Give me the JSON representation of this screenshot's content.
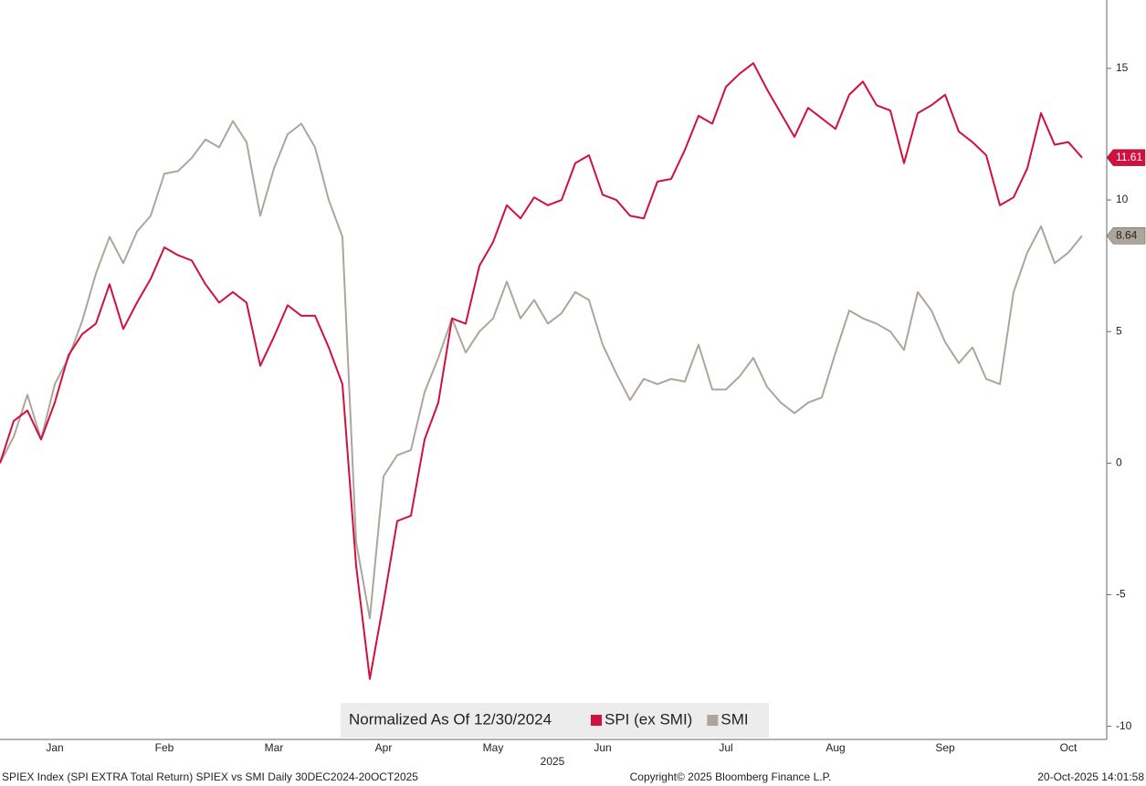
{
  "chart_data": {
    "type": "line",
    "title": "Normalized As Of 12/30/2024",
    "x_label": "2025",
    "footer_left": "SPIEX Index (SPI EXTRA Total Return) SPIEX vs SMI Daily 30DEC2024-20OCT2025",
    "footer_center": "Copyright© 2025 Bloomberg Finance L.P.",
    "footer_right": "20-Oct-2025 14:01:58",
    "categories": [
      null,
      null,
      null,
      null,
      "Jan",
      null,
      null,
      null,
      null,
      null,
      null,
      null,
      "Feb",
      null,
      null,
      null,
      null,
      null,
      null,
      null,
      "Mar",
      null,
      null,
      null,
      null,
      null,
      null,
      null,
      "Apr",
      null,
      null,
      null,
      null,
      null,
      null,
      null,
      "May",
      null,
      null,
      null,
      null,
      null,
      null,
      null,
      "Jun",
      null,
      null,
      null,
      null,
      null,
      null,
      null,
      null,
      "Jul",
      null,
      null,
      null,
      null,
      null,
      null,
      null,
      "Aug",
      null,
      null,
      null,
      null,
      null,
      null,
      null,
      "Sep",
      null,
      null,
      null,
      null,
      null,
      null,
      null,
      null,
      "Oct",
      null
    ],
    "series": [
      {
        "name": "SPI (ex SMI)",
        "color": "#d0103f",
        "values": [
          0,
          1.6,
          2.0,
          0.9,
          2.3,
          4.1,
          4.9,
          5.3,
          6.8,
          5.1,
          6.1,
          7.0,
          8.2,
          7.9,
          7.7,
          6.8,
          6.1,
          6.5,
          6.1,
          3.7,
          4.8,
          6.0,
          5.6,
          5.6,
          4.4,
          3.0,
          -3.9,
          -8.2,
          -5.3,
          -2.2,
          -2.0,
          0.9,
          2.3,
          5.5,
          5.3,
          7.5,
          8.4,
          9.8,
          9.3,
          10.1,
          9.8,
          10.0,
          11.4,
          11.7,
          10.2,
          10.0,
          9.4,
          9.3,
          10.7,
          10.8,
          11.9,
          13.2,
          12.9,
          14.3,
          14.8,
          15.2,
          14.2,
          13.3,
          12.4,
          13.5,
          13.1,
          12.7,
          14.0,
          14.5,
          13.6,
          13.4,
          11.4,
          13.3,
          13.6,
          14.0,
          12.6,
          12.2,
          11.7,
          9.8,
          10.1,
          11.2,
          13.3,
          12.1,
          12.2,
          11.61
        ]
      },
      {
        "name": "SMI",
        "color": "#aea59a",
        "values": [
          0,
          1.0,
          2.6,
          0.9,
          3.0,
          4.0,
          5.4,
          7.2,
          8.6,
          7.6,
          8.8,
          9.4,
          11.0,
          11.1,
          11.6,
          12.3,
          12.0,
          13.0,
          12.2,
          9.4,
          11.2,
          12.5,
          12.9,
          12.0,
          10.0,
          8.6,
          -3.0,
          -5.9,
          -0.5,
          0.3,
          0.5,
          2.7,
          4.0,
          5.5,
          4.2,
          5.0,
          5.5,
          6.9,
          5.5,
          6.2,
          5.3,
          5.7,
          6.5,
          6.2,
          4.5,
          3.4,
          2.4,
          3.2,
          3.0,
          3.2,
          3.1,
          4.5,
          2.8,
          2.8,
          3.3,
          4.0,
          2.9,
          2.3,
          1.9,
          2.3,
          2.5,
          4.2,
          5.8,
          5.5,
          5.3,
          5.0,
          4.3,
          6.5,
          5.8,
          4.6,
          3.8,
          4.4,
          3.2,
          3.0,
          6.5,
          8.0,
          9.0,
          7.6,
          8.0,
          8.64
        ]
      }
    ],
    "ylim": [
      -10.5,
      17.6
    ],
    "yticks": [
      -10,
      -5,
      0,
      5,
      10,
      15
    ],
    "legend": "bottom"
  }
}
